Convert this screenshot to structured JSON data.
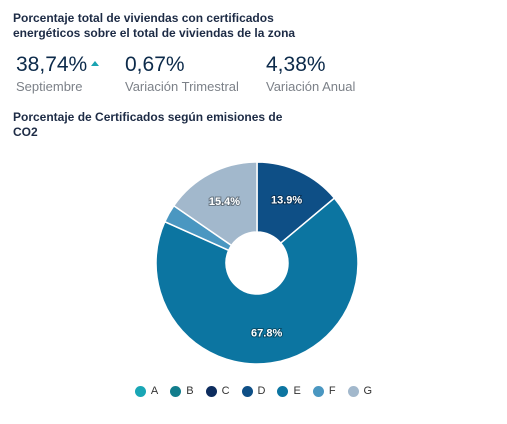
{
  "header": {
    "title": "Porcentaje total de viviendas con certificados energéticos sobre el total de viviendas de la zona"
  },
  "kpis": [
    {
      "value": "38,74%",
      "label": "Septiembre",
      "trend": "up",
      "trend_color": "#1aa3b1"
    },
    {
      "value": "0,67%",
      "label": "Variación Trimestral"
    },
    {
      "value": "4,38%",
      "label": "Variación Anual"
    }
  ],
  "chart_data": {
    "type": "pie",
    "donut": true,
    "title": "Porcentaje de Certificados según emisiones de CO2",
    "legend_position": "bottom",
    "slices": [
      {
        "label": "A",
        "value": 0.0,
        "color": "#19a6b5"
      },
      {
        "label": "B",
        "value": 0.0,
        "color": "#127d8c"
      },
      {
        "label": "C",
        "value": 0.0,
        "color": "#0d2c5e"
      },
      {
        "label": "D",
        "value": 13.9,
        "color": "#0e4f86",
        "value_label": "13.9%"
      },
      {
        "label": "E",
        "value": 67.8,
        "color": "#0c75a1",
        "value_label": "67.8%"
      },
      {
        "label": "F",
        "value": 2.9,
        "color": "#4a97c1"
      },
      {
        "label": "G",
        "value": 15.4,
        "color": "#a2b8cc",
        "value_label": "15.4%"
      }
    ]
  }
}
